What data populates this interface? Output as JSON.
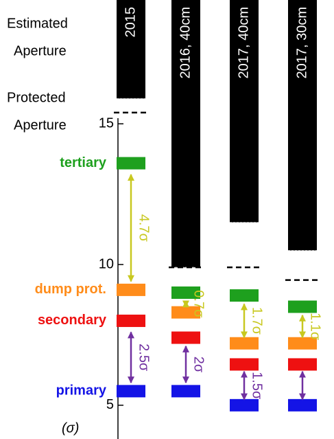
{
  "chart_data": {
    "type": "collimator",
    "side_labels": [
      "Estimated",
      "Aperture",
      "Protected",
      "Aperture"
    ],
    "ylabel": "(σ)",
    "ylim": [
      3.8,
      19.4
    ],
    "yticks": [
      5,
      10,
      15
    ],
    "levels": [
      {
        "name": "tertiary",
        "color": "#1ea01e"
      },
      {
        "name": "dump prot.",
        "color": "#ff8c1a"
      },
      {
        "name": "secondary",
        "color": "#ee1111"
      },
      {
        "name": "primary",
        "color": "#1414e6"
      }
    ],
    "columns": [
      {
        "name": "2015",
        "aperture": 15.9,
        "protected": 15.4,
        "values": [
          13.6,
          9.1,
          8.0,
          5.5
        ]
      },
      {
        "name": "2016, 40cm",
        "aperture": 9.9,
        "protected": 9.9,
        "values": [
          9.0,
          8.3,
          7.4,
          5.5
        ]
      },
      {
        "name": "2017, 40cm",
        "aperture": 11.5,
        "protected": 9.9,
        "values": [
          8.9,
          7.2,
          6.45,
          5.0
        ]
      },
      {
        "name": "2017, 30cm",
        "aperture": 10.5,
        "protected": 9.45,
        "values": [
          8.5,
          7.2,
          6.45,
          5.0
        ]
      }
    ],
    "arrows": [
      {
        "column": 0,
        "from": 13.2,
        "to": 9.4,
        "label": "4.7σ",
        "color": "#c8c820"
      },
      {
        "column": 0,
        "from": 7.6,
        "to": 5.8,
        "label": "2.5σ",
        "color": "#7030a0"
      },
      {
        "column": 1,
        "from": 8.7,
        "to": 8.5,
        "label": "0.7σ",
        "color": "#c8c820"
      },
      {
        "column": 1,
        "from": 7.1,
        "to": 5.8,
        "label": "2σ",
        "color": "#7030a0"
      },
      {
        "column": 2,
        "from": 8.6,
        "to": 7.4,
        "label": "1.7σ",
        "color": "#c8c820"
      },
      {
        "column": 2,
        "from": 6.2,
        "to": 5.2,
        "label": "1.5σ",
        "color": "#7030a0"
      },
      {
        "column": 3,
        "from": 8.2,
        "to": 7.4,
        "label": "1.1σ",
        "color": "#c8c820"
      },
      {
        "column": 3,
        "from": 6.2,
        "to": 5.2,
        "color": "#7030a0"
      }
    ]
  }
}
